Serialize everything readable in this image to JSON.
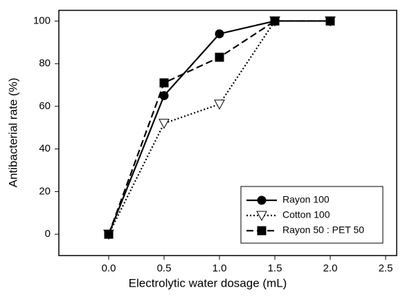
{
  "chart_data": {
    "type": "line",
    "x_label": "Electrolytic water dosage (mL)",
    "y_label": "Antibacterial rate (%)",
    "x": [
      0,
      0.5,
      1,
      1.5,
      2
    ],
    "series": [
      {
        "name": "Rayon 100",
        "color": "#000000",
        "marker": "circle",
        "line_style": "solid",
        "values": [
          0,
          65,
          94,
          100,
          100
        ]
      },
      {
        "name": "Cotton 100",
        "color": "#000000",
        "marker": "triangle-down-open",
        "line_style": "dotted",
        "values": [
          0,
          52,
          61,
          100,
          100
        ]
      },
      {
        "name": "Rayon 50 : PET 50",
        "color": "#000000",
        "marker": "square",
        "line_style": "dashed",
        "values": [
          0,
          71,
          83,
          100,
          100
        ]
      }
    ],
    "xlim": [
      -0.45,
      2.6
    ],
    "xticks": [
      {
        "value": 0,
        "label": "0.0"
      },
      {
        "value": 0.5,
        "label": "0.5"
      },
      {
        "value": 1,
        "label": "1.0"
      },
      {
        "value": 1.5,
        "label": "1.5"
      },
      {
        "value": 2,
        "label": "2.0"
      },
      {
        "value": 2.5,
        "label": "2.5"
      }
    ],
    "ylim": [
      -10,
      105
    ],
    "yticks": [
      0,
      20,
      40,
      60,
      80,
      100
    ],
    "legend": "lower right",
    "grid": false
  }
}
